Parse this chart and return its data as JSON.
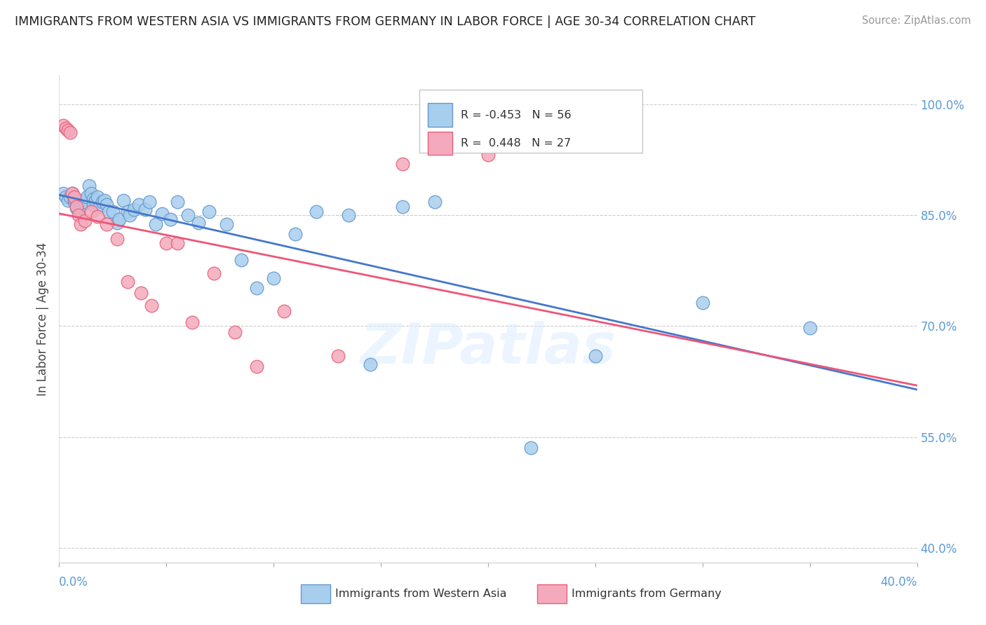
{
  "title": "IMMIGRANTS FROM WESTERN ASIA VS IMMIGRANTS FROM GERMANY IN LABOR FORCE | AGE 30-34 CORRELATION CHART",
  "source": "Source: ZipAtlas.com",
  "ylabel": "In Labor Force | Age 30-34",
  "y_ticks": [
    0.4,
    0.55,
    0.7,
    0.85,
    1.0
  ],
  "y_tick_labels": [
    "40.0%",
    "55.0%",
    "70.0%",
    "85.0%",
    "100.0%"
  ],
  "x_lim": [
    0.0,
    0.4
  ],
  "y_lim": [
    0.38,
    1.04
  ],
  "blue_R": -0.453,
  "blue_N": 56,
  "pink_R": 0.448,
  "pink_N": 27,
  "blue_color": "#A8CEEE",
  "pink_color": "#F4AABC",
  "blue_edge_color": "#6699CC",
  "pink_edge_color": "#E8607A",
  "blue_line_color": "#4477CC",
  "pink_line_color": "#EE5577",
  "watermark": "ZIPatlas",
  "legend_blue": "Immigrants from Western Asia",
  "legend_pink": "Immigrants from Germany",
  "blue_scatter_x": [
    0.002,
    0.003,
    0.004,
    0.005,
    0.006,
    0.007,
    0.007,
    0.008,
    0.009,
    0.01,
    0.01,
    0.011,
    0.012,
    0.013,
    0.014,
    0.015,
    0.016,
    0.016,
    0.017,
    0.018,
    0.019,
    0.02,
    0.021,
    0.022,
    0.023,
    0.025,
    0.027,
    0.028,
    0.03,
    0.032,
    0.033,
    0.035,
    0.037,
    0.04,
    0.042,
    0.045,
    0.048,
    0.052,
    0.055,
    0.06,
    0.065,
    0.07,
    0.078,
    0.085,
    0.092,
    0.1,
    0.11,
    0.12,
    0.135,
    0.145,
    0.16,
    0.175,
    0.22,
    0.25,
    0.3,
    0.35
  ],
  "blue_scatter_y": [
    0.88,
    0.875,
    0.87,
    0.875,
    0.88,
    0.868,
    0.872,
    0.86,
    0.858,
    0.865,
    0.862,
    0.87,
    0.868,
    0.875,
    0.89,
    0.88,
    0.872,
    0.865,
    0.87,
    0.875,
    0.862,
    0.868,
    0.87,
    0.865,
    0.855,
    0.855,
    0.84,
    0.845,
    0.87,
    0.855,
    0.85,
    0.858,
    0.865,
    0.858,
    0.868,
    0.838,
    0.852,
    0.845,
    0.868,
    0.85,
    0.84,
    0.855,
    0.838,
    0.79,
    0.752,
    0.765,
    0.825,
    0.855,
    0.85,
    0.648,
    0.862,
    0.868,
    0.535,
    0.66,
    0.732,
    0.698
  ],
  "pink_scatter_x": [
    0.002,
    0.003,
    0.004,
    0.005,
    0.006,
    0.007,
    0.008,
    0.009,
    0.01,
    0.012,
    0.015,
    0.018,
    0.022,
    0.027,
    0.032,
    0.038,
    0.043,
    0.05,
    0.055,
    0.062,
    0.072,
    0.082,
    0.092,
    0.105,
    0.13,
    0.16,
    0.2
  ],
  "pink_scatter_y": [
    0.972,
    0.968,
    0.965,
    0.962,
    0.88,
    0.875,
    0.862,
    0.85,
    0.838,
    0.843,
    0.855,
    0.848,
    0.838,
    0.818,
    0.76,
    0.745,
    0.728,
    0.812,
    0.812,
    0.705,
    0.772,
    0.692,
    0.645,
    0.72,
    0.66,
    0.92,
    0.932
  ]
}
